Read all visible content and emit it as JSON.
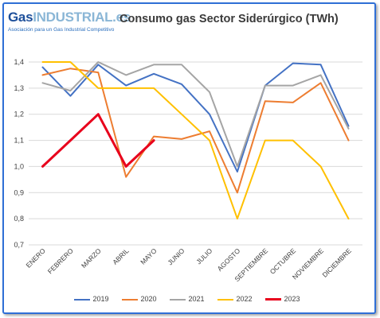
{
  "logo": {
    "gas": "Gas",
    "industrial": "INDUSTRIAL.es",
    "tagline": "Asociación para un Gas Industrial Competitivo"
  },
  "chart_data": {
    "type": "line",
    "title": "Consumo gas Sector Siderúrgico (TWh)",
    "xlabel": "",
    "ylabel": "",
    "categories": [
      "ENERO",
      "FEBRERO",
      "MARZO",
      "ABRIL",
      "MAYO",
      "JUNIO",
      "JULIO",
      "AGOSTO",
      "SEPTIEMBRE",
      "OCTUBRE",
      "NOVIEMBRE",
      "DICIEMBRE"
    ],
    "y_ticks": [
      "0,7",
      "0,8",
      "0,9",
      "1,0",
      "1,1",
      "1,2",
      "1,3",
      "1,4"
    ],
    "ylim": [
      0.7,
      1.4
    ],
    "grid": true,
    "legend_position": "bottom",
    "series": [
      {
        "name": "2019",
        "color": "#4472c4",
        "values": [
          1.38,
          1.27,
          1.39,
          1.31,
          1.355,
          1.315,
          1.2,
          0.98,
          1.31,
          1.395,
          1.39,
          1.155
        ]
      },
      {
        "name": "2020",
        "color": "#ed7d31",
        "values": [
          1.35,
          1.375,
          1.36,
          0.96,
          1.115,
          1.105,
          1.135,
          0.9,
          1.25,
          1.245,
          1.32,
          1.1
        ]
      },
      {
        "name": "2021",
        "color": "#a5a5a5",
        "values": [
          1.32,
          1.29,
          1.4,
          1.35,
          1.39,
          1.39,
          1.285,
          1.0,
          1.31,
          1.31,
          1.35,
          1.145
        ]
      },
      {
        "name": "2022",
        "color": "#ffc000",
        "values": [
          1.4,
          1.4,
          1.3,
          1.3,
          1.3,
          1.2,
          1.1,
          0.8,
          1.1,
          1.1,
          1.0,
          0.8
        ]
      },
      {
        "name": "2023",
        "color": "#e8001c",
        "values": [
          1.0,
          1.1,
          1.2,
          1.0,
          1.1,
          null,
          null,
          null,
          null,
          null,
          null,
          null
        ]
      }
    ]
  }
}
